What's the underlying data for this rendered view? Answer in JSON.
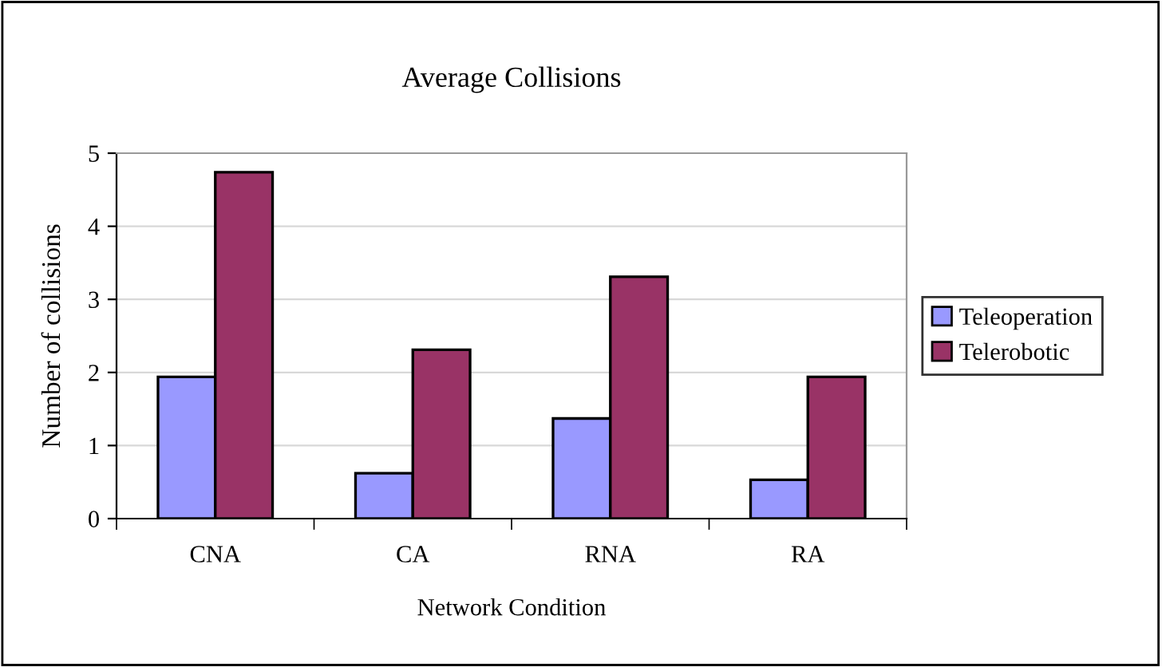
{
  "chart_data": {
    "type": "bar",
    "title": "Average Collisions",
    "xlabel": "Network Condition",
    "ylabel": "Number of collisions",
    "categories": [
      "CNA",
      "CA",
      "RNA",
      "RA"
    ],
    "series": [
      {
        "name": "Teleoperation",
        "color": "#9999ff",
        "values": [
          1.94,
          0.62,
          1.37,
          0.53
        ]
      },
      {
        "name": "Telerobotic",
        "color": "#993366",
        "values": [
          4.74,
          2.31,
          3.31,
          1.94
        ]
      }
    ],
    "ylim": [
      0,
      5
    ],
    "yticks": [
      0,
      1,
      2,
      3,
      4,
      5
    ],
    "grid": "y",
    "legend": "right"
  }
}
